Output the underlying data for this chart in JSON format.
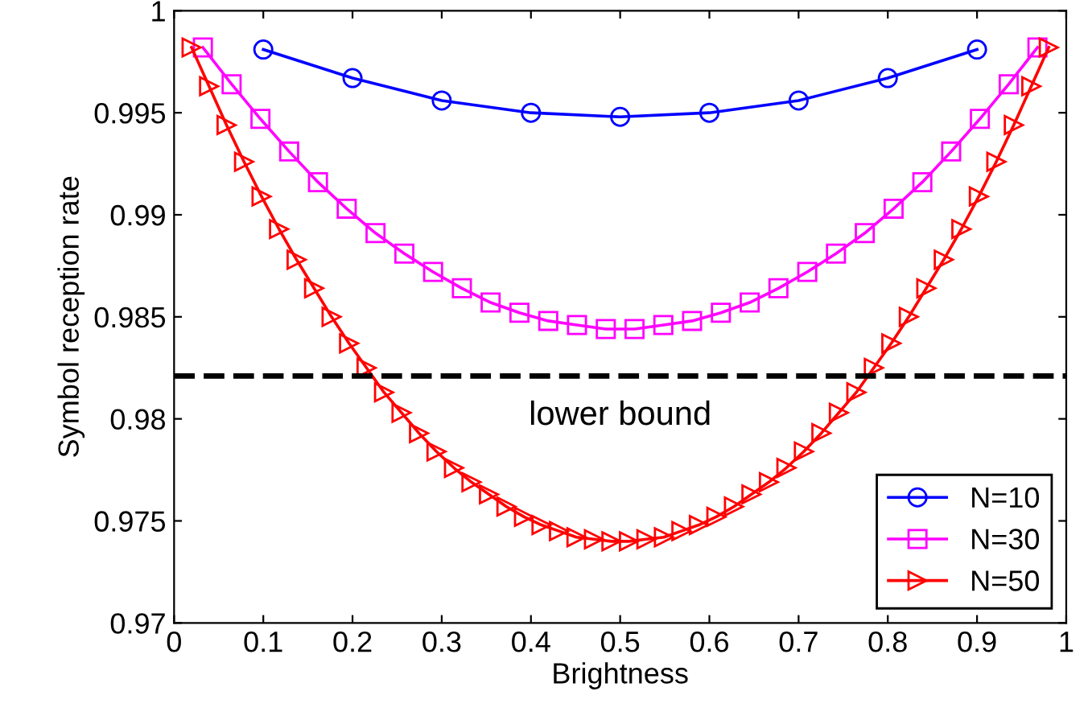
{
  "chart_data": {
    "type": "line",
    "xlabel": "Brightness",
    "ylabel": "Symbol reception rate",
    "xlim": [
      0,
      1
    ],
    "ylim": [
      0.97,
      1
    ],
    "xticks": [
      0,
      0.1,
      0.2,
      0.3,
      0.4,
      0.5,
      0.6,
      0.7,
      0.8,
      0.9,
      1
    ],
    "yticks": [
      0.97,
      0.975,
      0.98,
      0.985,
      0.99,
      0.995,
      1
    ],
    "grid": false,
    "legend": "bottom right",
    "line_style": "solid",
    "ref_lines": [
      {
        "axis": "y",
        "value": 0.9821,
        "label": "lower bound",
        "color": "#000000",
        "line_style": "dashed"
      }
    ],
    "series": [
      {
        "name": "N=10",
        "color": "#0000ff",
        "marker": "circle",
        "x": [
          0.1,
          0.2,
          0.3,
          0.4,
          0.5,
          0.6,
          0.7,
          0.8,
          0.9
        ],
        "values": [
          0.9981,
          0.9967,
          0.9956,
          0.995,
          0.9948,
          0.995,
          0.9956,
          0.9967,
          0.9981
        ]
      },
      {
        "name": "N=30",
        "color": "#ff00ff",
        "marker": "square",
        "x": [
          0.0323,
          0.0645,
          0.0968,
          0.129,
          0.1613,
          0.1935,
          0.2258,
          0.2581,
          0.2903,
          0.3226,
          0.3548,
          0.3871,
          0.4194,
          0.4516,
          0.4839,
          0.5161,
          0.5484,
          0.5806,
          0.6129,
          0.6452,
          0.6774,
          0.7097,
          0.7419,
          0.7742,
          0.8065,
          0.8387,
          0.871,
          0.9032,
          0.9355,
          0.9677
        ],
        "values": [
          0.9982,
          0.9964,
          0.9947,
          0.9931,
          0.9916,
          0.9903,
          0.9891,
          0.9881,
          0.9872,
          0.9864,
          0.9857,
          0.9852,
          0.9848,
          0.9846,
          0.9844,
          0.9844,
          0.9846,
          0.9848,
          0.9852,
          0.9857,
          0.9864,
          0.9872,
          0.9881,
          0.9891,
          0.9903,
          0.9916,
          0.9931,
          0.9947,
          0.9964,
          0.9982
        ]
      },
      {
        "name": "N=50",
        "color": "#ff0000",
        "marker": "triangle",
        "x": [
          0.0196,
          0.0392,
          0.0588,
          0.0784,
          0.098,
          0.1176,
          0.1373,
          0.1569,
          0.1765,
          0.1961,
          0.2157,
          0.2353,
          0.2549,
          0.2745,
          0.2941,
          0.3137,
          0.3333,
          0.3529,
          0.3725,
          0.3922,
          0.4118,
          0.4314,
          0.451,
          0.4706,
          0.4902,
          0.5098,
          0.5294,
          0.549,
          0.5686,
          0.5882,
          0.6078,
          0.6275,
          0.6471,
          0.6667,
          0.6863,
          0.7059,
          0.7255,
          0.7451,
          0.7647,
          0.7843,
          0.8039,
          0.8235,
          0.8431,
          0.8627,
          0.8824,
          0.902,
          0.9216,
          0.9412,
          0.9608,
          0.9804
        ],
        "values": [
          0.9982,
          0.9963,
          0.9944,
          0.9926,
          0.9909,
          0.9893,
          0.9878,
          0.9864,
          0.985,
          0.9837,
          0.9825,
          0.9813,
          0.9803,
          0.9793,
          0.9784,
          0.9776,
          0.9769,
          0.9763,
          0.9757,
          0.9752,
          0.9748,
          0.9745,
          0.9742,
          0.9741,
          0.974,
          0.974,
          0.9741,
          0.9742,
          0.9745,
          0.9748,
          0.9752,
          0.9757,
          0.9763,
          0.9769,
          0.9776,
          0.9784,
          0.9793,
          0.9803,
          0.9813,
          0.9825,
          0.9837,
          0.985,
          0.9864,
          0.9878,
          0.9893,
          0.9909,
          0.9926,
          0.9944,
          0.9963,
          0.9982
        ]
      }
    ]
  }
}
